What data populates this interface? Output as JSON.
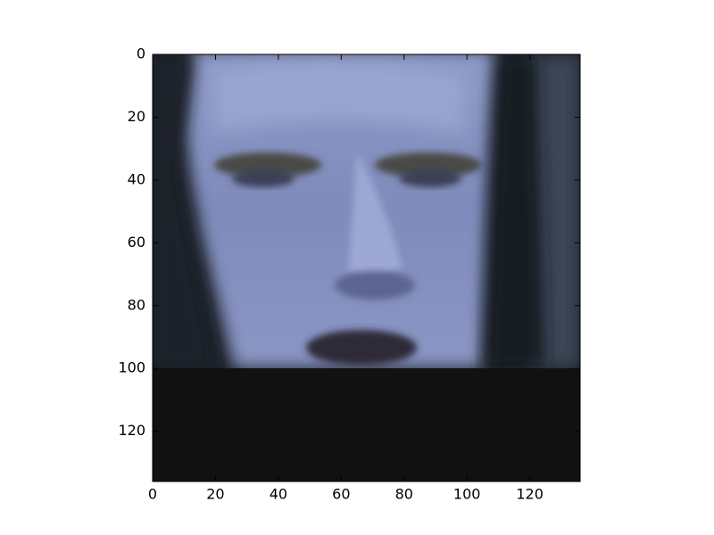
{
  "chart_data": {
    "type": "image",
    "xlim": [
      0,
      136
    ],
    "ylim": [
      136,
      0
    ],
    "xticks": [
      0,
      20,
      40,
      60,
      80,
      100,
      120
    ],
    "yticks": [
      0,
      20,
      40,
      60,
      80,
      100,
      120
    ]
  }
}
